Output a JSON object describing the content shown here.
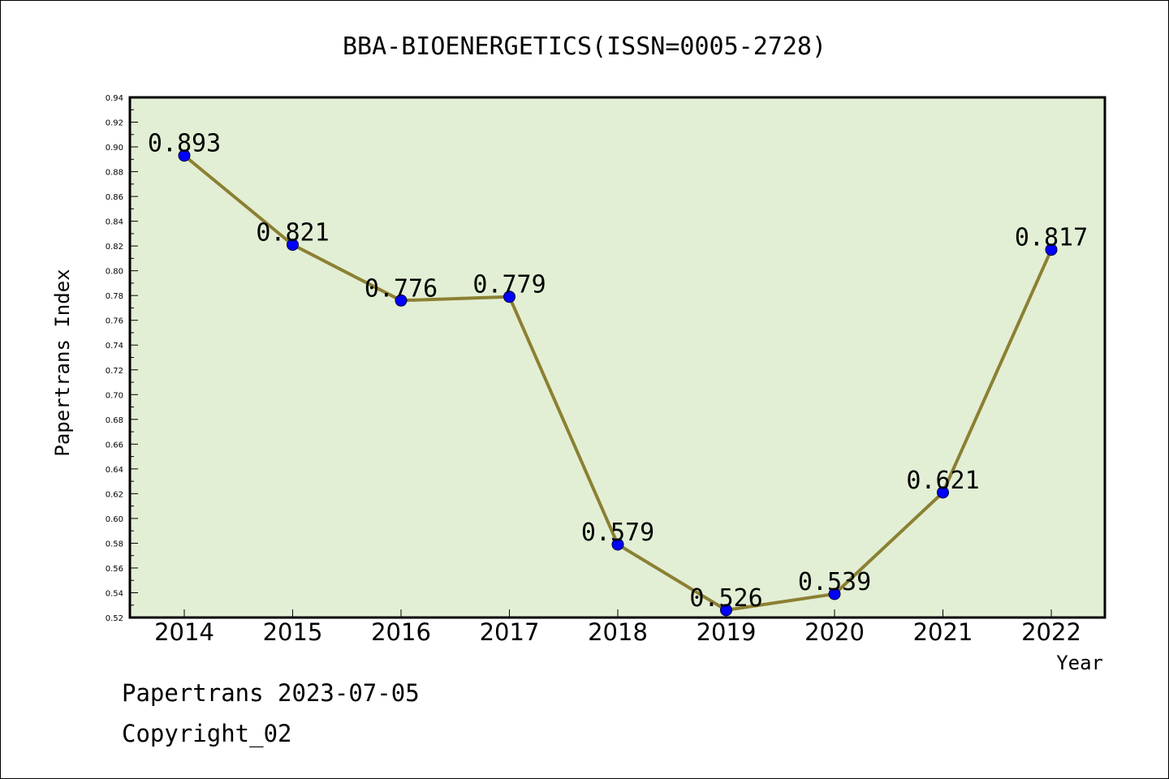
{
  "chart_data": {
    "type": "line",
    "title": "BBA-BIOENERGETICS(ISSN=0005-2728)",
    "xlabel": "Year",
    "ylabel": "Papertrans Index",
    "categories": [
      "2014",
      "2015",
      "2016",
      "2017",
      "2018",
      "2019",
      "2020",
      "2021",
      "2022"
    ],
    "values": [
      0.893,
      0.821,
      0.776,
      0.779,
      0.579,
      0.526,
      0.539,
      0.621,
      0.817
    ],
    "data_labels": [
      "0.893",
      "0.821",
      "0.776",
      "0.779",
      "0.579",
      "0.526",
      "0.539",
      "0.621",
      "0.817"
    ],
    "ylim": [
      0.52,
      0.94
    ],
    "yticks": [
      "0.52",
      "0.54",
      "0.56",
      "0.58",
      "0.60",
      "0.62",
      "0.64",
      "0.66",
      "0.68",
      "0.70",
      "0.72",
      "0.74",
      "0.76",
      "0.78",
      "0.80",
      "0.82",
      "0.84",
      "0.86",
      "0.88",
      "0.90",
      "0.92",
      "0.94"
    ],
    "grid": false,
    "colors": {
      "plot_bg": "#e2efd4",
      "line": "#8b8033",
      "marker": "#0000ff"
    }
  },
  "footer": {
    "line1": "Papertrans 2023-07-05",
    "line2": "Copyright_02"
  }
}
